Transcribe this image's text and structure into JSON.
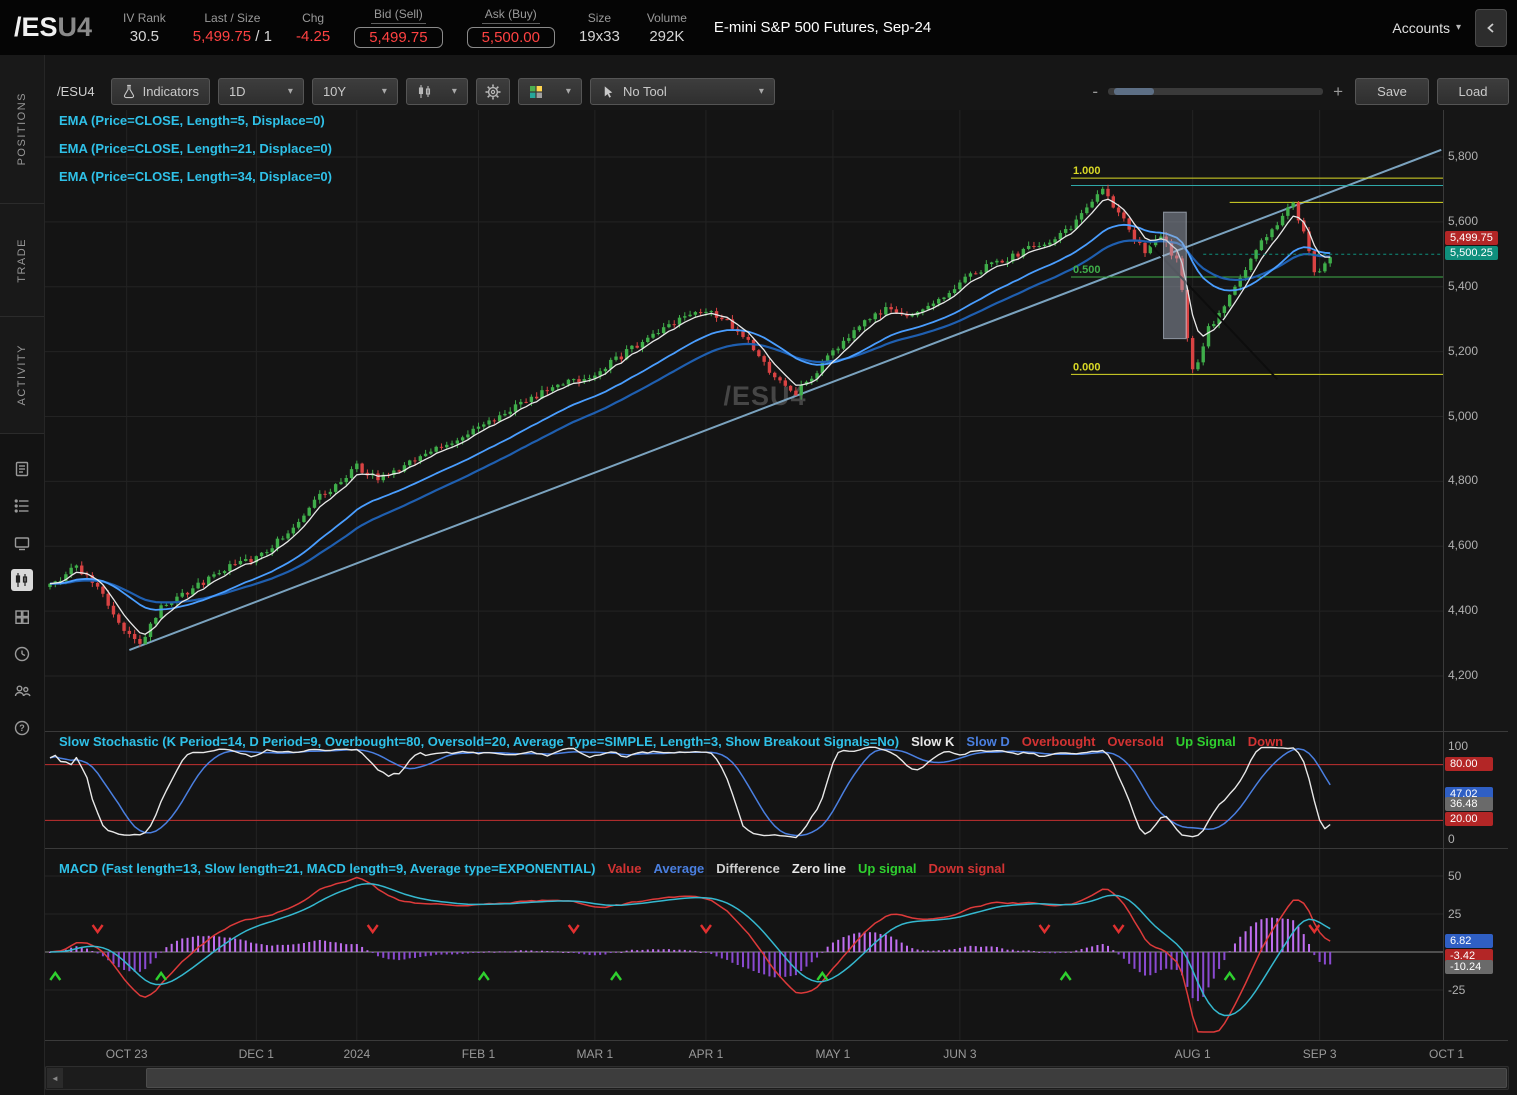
{
  "header": {
    "symbol_main": "/ES",
    "symbol_suffix": "U4",
    "fields": [
      {
        "label": "IV Rank",
        "value": "30.5"
      },
      {
        "label": "Last / Size",
        "value": "5,499.75",
        "value2": " / 1"
      },
      {
        "label": "Chg",
        "value": "-4.25"
      },
      {
        "label": "Bid (Sell)",
        "value": "5,499.75"
      },
      {
        "label": "Ask (Buy)",
        "value": "5,500.00"
      },
      {
        "label": "Size",
        "value": "19x33"
      },
      {
        "label": "Volume",
        "value": "292K"
      }
    ],
    "instrument_title": "E-mini S&P 500 Futures, Sep-24",
    "accounts_label": "Accounts"
  },
  "sidebar": {
    "tabs": [
      "POSITIONS",
      "TRADE",
      "ACTIVITY"
    ],
    "icons": [
      "news-icon",
      "ledger-icon",
      "tv-icon",
      "chart-icon",
      "grid-icon",
      "clock-icon",
      "people-icon",
      "help-icon"
    ]
  },
  "toolbar": {
    "symbol_label": "/ESU4",
    "indicators_label": "Indicators",
    "timeframe_value": "1D",
    "range_value": "10Y",
    "tool_value": "No Tool",
    "save_label": "Save",
    "load_label": "Load",
    "zoom_minus": "-",
    "zoom_plus": "+"
  },
  "chart": {
    "ema_legends": [
      "EMA (Price=CLOSE, Length=5, Displace=0)",
      "EMA (Price=CLOSE, Length=21, Displace=0)",
      "EMA (Price=CLOSE, Length=34, Displace=0)"
    ],
    "watermark": "/ESU4",
    "colors": {
      "up": "#3fae4a",
      "down": "#d94343",
      "ema5": "#e8e8e8",
      "ema21": "#4a9eff",
      "ema34": "#1f5fb0",
      "trend": "#7ba3bf",
      "grid": "#232323"
    },
    "price_ticks": [
      {
        "label": "5,800",
        "p": 5800
      },
      {
        "label": "5,600",
        "p": 5600
      },
      {
        "label": "5,400",
        "p": 5400
      },
      {
        "label": "5,200",
        "p": 5200
      },
      {
        "label": "5,000",
        "p": 5000
      },
      {
        "label": "4,800",
        "p": 4800
      },
      {
        "label": "4,600",
        "p": 4600
      },
      {
        "label": "4,400",
        "p": 4400
      },
      {
        "label": "4,200",
        "p": 4200
      }
    ],
    "price_bubbles": [
      {
        "text": "5,499.75",
        "bg": "#b32626",
        "price": 5499.75,
        "dy": -15
      },
      {
        "text": "5,500.25",
        "bg": "#0f8f7c",
        "price": 5500.25,
        "dy": 0
      }
    ],
    "fib_levels": [
      {
        "label": "1.000",
        "price": 5735,
        "color": "#d9d926",
        "start_i": 193
      },
      {
        "label": "0.500",
        "price": 5430,
        "color": "#3fae4a",
        "start_i": 193
      },
      {
        "label": "0.000",
        "price": 5130,
        "color": "#d9d926",
        "start_i": 193
      }
    ],
    "extra_levels": [
      {
        "price": 5712,
        "color": "#2fa8a8",
        "start_i": 193
      },
      {
        "price": 5660,
        "color": "#d9d926",
        "start_i": 223
      }
    ],
    "last_price_line": {
      "price": 5500.25,
      "color": "#0f8f7c",
      "start_i": 218
    },
    "trendline": {
      "points": [
        [
          15,
          4280
        ],
        [
          263,
          5822
        ]
      ],
      "color": "#7ba3bf"
    },
    "drawn_line": {
      "points": [
        [
          208,
          5530
        ],
        [
          232,
          5115
        ]
      ],
      "color": "#0d0d0d"
    },
    "selection_rect": {
      "i1": 210.5,
      "i2": 214.8,
      "p1": 5630,
      "p2": 5240
    }
  },
  "stoch": {
    "title": "Slow Stochastic (K Period=14, D Period=9, Overbought=80, Oversold=20, Average Type=SIMPLE, Length=3, Show Breakout Signals=No)",
    "legend": [
      {
        "text": "Slow K",
        "color": "#e8e8e8"
      },
      {
        "text": "Slow D",
        "color": "#4a7fe0"
      },
      {
        "text": "Overbought",
        "color": "#d23333"
      },
      {
        "text": "Oversold",
        "color": "#d23333"
      },
      {
        "text": "Up Signal",
        "color": "#2fd02f"
      },
      {
        "text": "Down",
        "color": "#d23333"
      }
    ],
    "overbought": 80,
    "oversold": 20,
    "axis_plain": [
      {
        "label": "100",
        "v": 100
      },
      {
        "label": "0",
        "v": 0
      }
    ],
    "bubbles": [
      {
        "text": "80.00",
        "bg": "#b32626",
        "v": 80
      },
      {
        "text": "47.02",
        "bg": "#2f5fc4",
        "v": 47.02
      },
      {
        "text": "36.48",
        "bg": "#6a6a6a",
        "v": 36.48
      },
      {
        "text": "20.00",
        "bg": "#b32626",
        "v": 20
      }
    ]
  },
  "macd": {
    "title": "MACD (Fast length=13, Slow length=21, MACD length=9, Average type=EXPONENTIAL)",
    "legend": [
      {
        "text": "Value",
        "color": "#d23333"
      },
      {
        "text": "Average",
        "color": "#4a7fe0"
      },
      {
        "text": "Difference",
        "color": "#cfcfcf"
      },
      {
        "text": "Zero line",
        "color": "#e8e8e8"
      },
      {
        "text": "Up signal",
        "color": "#2fd02f"
      },
      {
        "text": "Down signal",
        "color": "#d23333"
      }
    ],
    "axis_plain": [
      {
        "label": "50",
        "v": 50
      },
      {
        "label": "25",
        "v": 25
      },
      {
        "label": "-25",
        "v": -25
      }
    ],
    "bubbles": [
      {
        "text": "6.82",
        "bg": "#2f5fc4",
        "v": 6.82
      },
      {
        "text": "-3.42",
        "bg": "#b32626",
        "v": -3.42
      },
      {
        "text": "-10.24",
        "bg": "#6a6a6a",
        "v": -10.24
      }
    ]
  },
  "time_axis": {
    "labels": [
      [
        "OCT 23",
        14.5
      ],
      [
        "DEC 1",
        39
      ],
      [
        "2024",
        58
      ],
      [
        "FEB 1",
        81
      ],
      [
        "MAR 1",
        103
      ],
      [
        "APR 1",
        124
      ],
      [
        "MAY 1",
        148
      ],
      [
        "JUN 3",
        172
      ],
      [
        "AUG 1",
        216
      ],
      [
        "SEP 3",
        240
      ],
      [
        "OCT 1",
        264
      ]
    ]
  },
  "chart_data": {
    "type": "candlestick",
    "symbol": "/ESU4",
    "instrument": "E-mini S&P 500 Futures, Sep-24",
    "timeframe": "1D",
    "range": "10Y",
    "bar_count": 243,
    "ylim": [
      4150,
      5850
    ],
    "x_labels": [
      "OCT 23",
      "DEC 1",
      "2024",
      "FEB 1",
      "MAR 1",
      "APR 1",
      "MAY 1",
      "JUN 3",
      "AUG 1",
      "SEP 3",
      "OCT 1"
    ],
    "indicators": [
      "EMA(5)",
      "EMA(21)",
      "EMA(34)",
      "Slow Stochastic(14,9,SIMPLE,3)",
      "MACD(13,21,9,EXPONENTIAL)"
    ],
    "last_price": 5499.75,
    "price_anchors": [
      [
        0,
        4480
      ],
      [
        5,
        4540
      ],
      [
        9,
        4470
      ],
      [
        14,
        4350
      ],
      [
        17,
        4295
      ],
      [
        21,
        4420
      ],
      [
        27,
        4470
      ],
      [
        33,
        4530
      ],
      [
        39,
        4560
      ],
      [
        45,
        4640
      ],
      [
        50,
        4740
      ],
      [
        55,
        4800
      ],
      [
        58,
        4845
      ],
      [
        62,
        4805
      ],
      [
        68,
        4855
      ],
      [
        75,
        4920
      ],
      [
        81,
        4960
      ],
      [
        88,
        5035
      ],
      [
        95,
        5090
      ],
      [
        103,
        5130
      ],
      [
        110,
        5210
      ],
      [
        118,
        5290
      ],
      [
        124,
        5330
      ],
      [
        130,
        5270
      ],
      [
        136,
        5140
      ],
      [
        141,
        5070
      ],
      [
        147,
        5180
      ],
      [
        153,
        5280
      ],
      [
        158,
        5330
      ],
      [
        163,
        5310
      ],
      [
        168,
        5360
      ],
      [
        174,
        5440
      ],
      [
        180,
        5480
      ],
      [
        187,
        5530
      ],
      [
        193,
        5580
      ],
      [
        199,
        5700
      ],
      [
        203,
        5610
      ],
      [
        207,
        5500
      ],
      [
        210,
        5555
      ],
      [
        213,
        5480
      ],
      [
        214,
        5390
      ],
      [
        215,
        5250
      ],
      [
        216,
        5140
      ],
      [
        217,
        5175
      ],
      [
        219,
        5270
      ],
      [
        222,
        5340
      ],
      [
        226,
        5450
      ],
      [
        230,
        5560
      ],
      [
        233,
        5620
      ],
      [
        235,
        5650
      ],
      [
        237,
        5560
      ],
      [
        239,
        5455
      ],
      [
        240,
        5440
      ],
      [
        241,
        5480
      ],
      [
        242,
        5500
      ]
    ]
  }
}
